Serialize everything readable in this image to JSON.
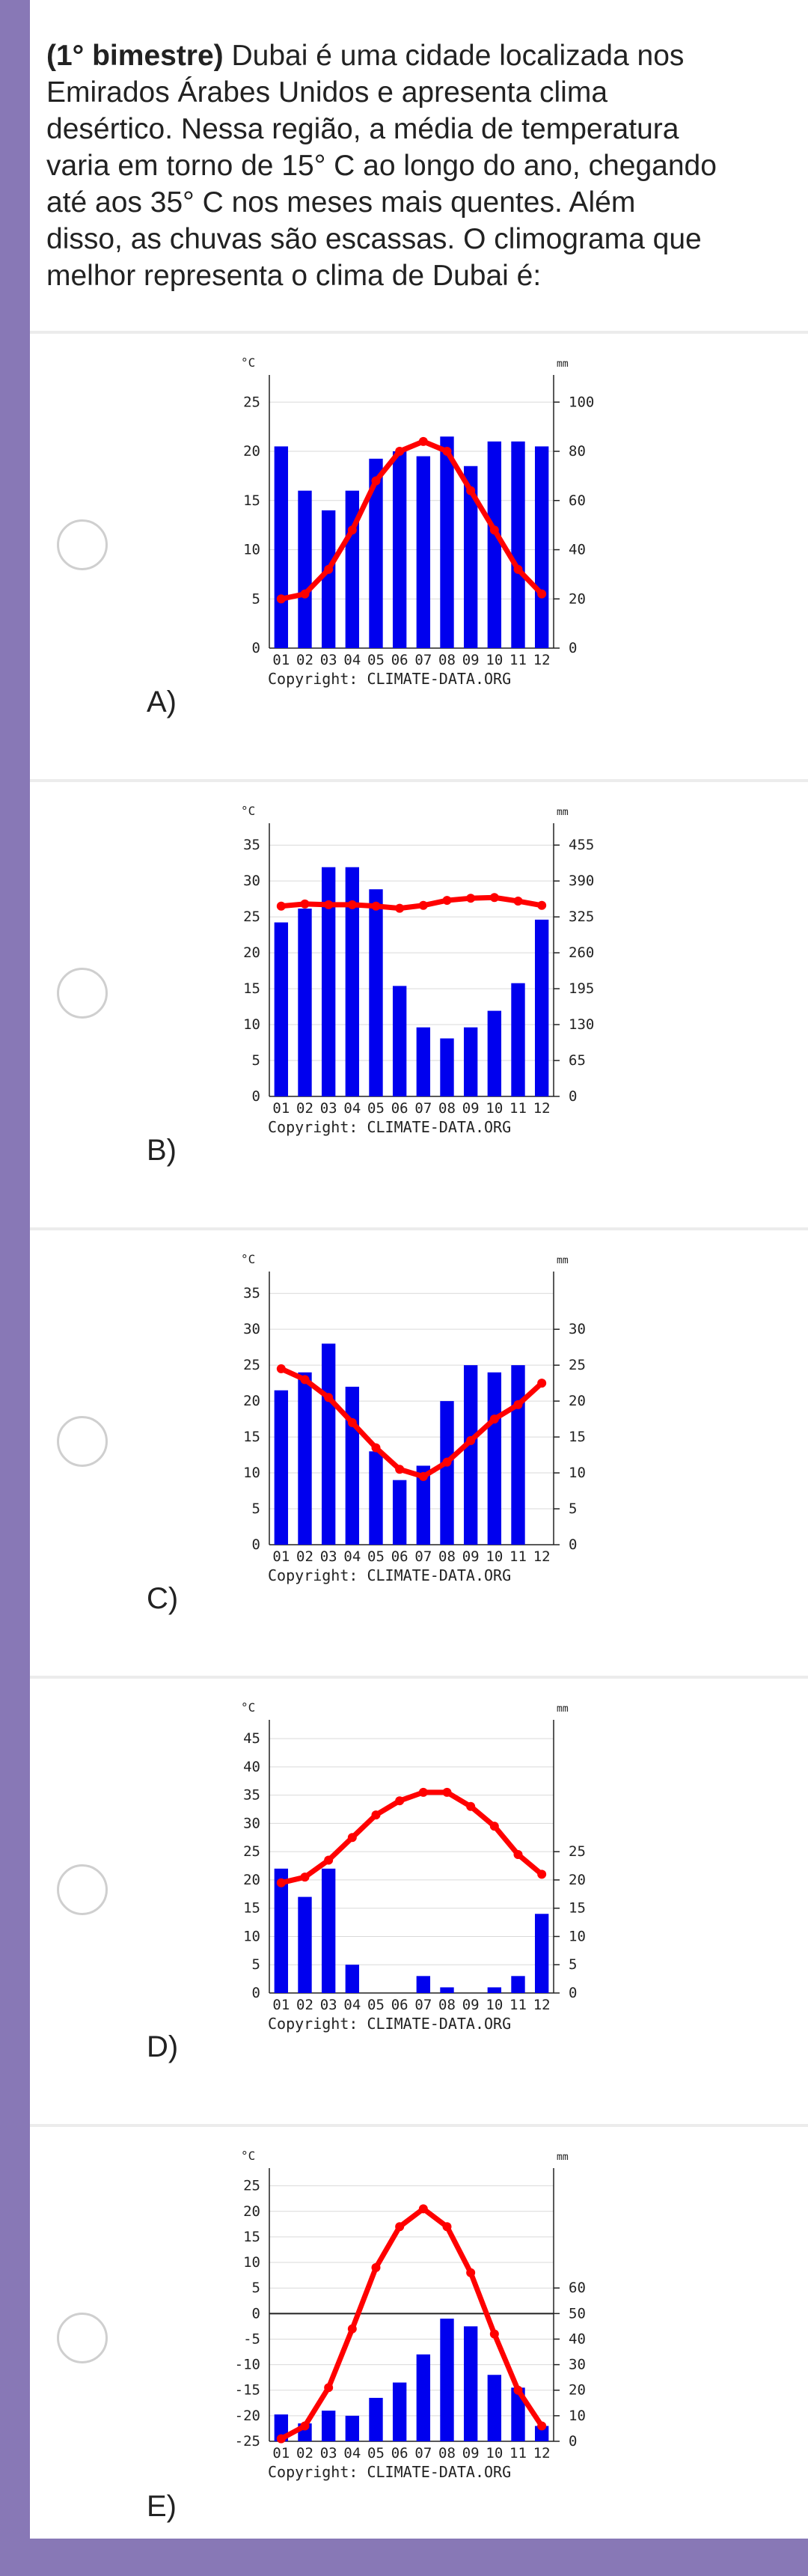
{
  "question": {
    "prefix": "(1° bimestre)",
    "lines": [
      " Dubai é uma cidade localizada nos",
      "Emirados Árabes Unidos e apresenta clima",
      "desértico. Nessa região, a média de temperatura",
      "varia em torno de 15° C ao longo do ano, chegando",
      "até aos 35° C nos meses mais quentes. Além",
      "disso, as chuvas são escassas. O climograma que",
      "melhor representa o clima de Dubai é:"
    ]
  },
  "colors": {
    "background": "#8878b6",
    "bar": "#0000ee",
    "line": "#ff0000",
    "card": "#ffffff"
  },
  "common": {
    "months": [
      "01",
      "02",
      "03",
      "04",
      "05",
      "06",
      "07",
      "08",
      "09",
      "10",
      "11",
      "12"
    ],
    "copyright": "Copyright: CLIMATE-DATA.ORG",
    "left_unit": "°C",
    "right_unit": "mm"
  },
  "options": [
    {
      "label": "A)",
      "chart_data": {
        "type": "bar",
        "left_ticks": [
          "25",
          "20",
          "15",
          "10",
          "5",
          "0"
        ],
        "right_ticks": [
          "100",
          "80",
          "60",
          "40",
          "20",
          "0"
        ],
        "temp_range": [
          0,
          27
        ],
        "precip_range": [
          0,
          108
        ],
        "precip": [
          82,
          64,
          56,
          64,
          77,
          80,
          78,
          86,
          74,
          84,
          84,
          82
        ],
        "temp": [
          5,
          5.5,
          8,
          12,
          17,
          20,
          21,
          20,
          16,
          12,
          8,
          5.5
        ],
        "show_zero_line": false
      }
    },
    {
      "label": "B)",
      "chart_data": {
        "type": "bar",
        "left_ticks": [
          "35",
          "30",
          "25",
          "20",
          "15",
          "10",
          "5",
          "0"
        ],
        "right_ticks": [
          "455",
          "390",
          "325",
          "260",
          "195",
          "130",
          "65",
          "0"
        ],
        "temp_range": [
          0,
          37
        ],
        "precip_range": [
          0,
          481
        ],
        "precip": [
          315,
          340,
          415,
          415,
          375,
          200,
          125,
          105,
          125,
          155,
          205,
          320
        ],
        "temp": [
          26.5,
          26.8,
          26.7,
          26.7,
          26.5,
          26.2,
          26.6,
          27.3,
          27.6,
          27.7,
          27.2,
          26.6
        ],
        "show_zero_line": false
      }
    },
    {
      "label": "C)",
      "chart_data": {
        "type": "bar",
        "left_ticks": [
          "35",
          "30",
          "25",
          "20",
          "15",
          "10",
          "5",
          "0"
        ],
        "right_ticks": [
          "30",
          "25",
          "20",
          "15",
          "10",
          "5",
          "0"
        ],
        "temp_range": [
          0,
          37
        ],
        "precip_range": [
          0,
          37
        ],
        "precip": [
          21.5,
          24,
          28,
          22,
          13,
          9,
          11,
          20,
          25,
          24,
          25,
          0
        ],
        "temp": [
          24.5,
          23,
          20.5,
          17,
          13.5,
          10.5,
          9.5,
          11.5,
          14.5,
          17.5,
          19.5,
          22.5
        ],
        "show_zero_line": false
      }
    },
    {
      "label": "D)",
      "chart_data": {
        "type": "bar",
        "left_ticks": [
          "45",
          "40",
          "35",
          "30",
          "25",
          "20",
          "15",
          "10",
          "5",
          "0"
        ],
        "right_ticks": [
          "25",
          "20",
          "15",
          "10",
          "5",
          "0"
        ],
        "temp_range": [
          0,
          47
        ],
        "precip_range": [
          0,
          47
        ],
        "precip": [
          22,
          17,
          22,
          5,
          0,
          0,
          3,
          1,
          0,
          1,
          3,
          14
        ],
        "temp": [
          19.5,
          20.5,
          23.5,
          27.5,
          31.5,
          34,
          35.5,
          35.5,
          33,
          29.5,
          24.5,
          21
        ],
        "show_zero_line": false
      }
    },
    {
      "label": "E)",
      "chart_data": {
        "type": "bar",
        "left_ticks": [
          "25",
          "20",
          "15",
          "10",
          "5",
          "0",
          "-5",
          "-10",
          "-15",
          "-20",
          "-25"
        ],
        "right_ticks": [
          "60",
          "50",
          "40",
          "30",
          "20",
          "10",
          "0"
        ],
        "temp_range": [
          -25,
          27
        ],
        "precip_range": [
          0,
          104
        ],
        "precip": [
          10.5,
          7,
          12,
          10,
          17,
          23,
          34,
          48,
          45,
          26,
          21,
          6
        ],
        "temp": [
          -24.5,
          -22,
          -14.5,
          -3,
          9,
          17,
          20.5,
          17,
          8,
          -4,
          -15,
          -22
        ],
        "show_zero_line": true
      }
    }
  ]
}
